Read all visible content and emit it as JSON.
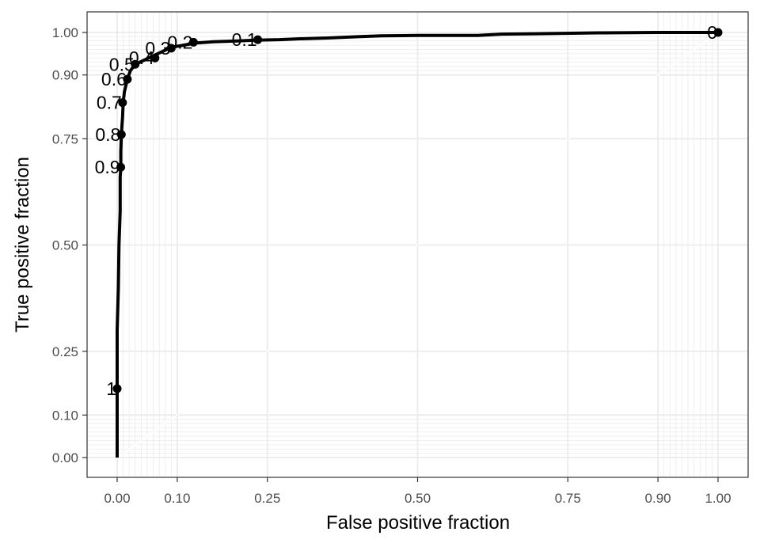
{
  "chart_data": {
    "type": "line",
    "title": "",
    "xlabel": "False positive fraction",
    "ylabel": "True positive fraction",
    "xlim": [
      0,
      1
    ],
    "ylim": [
      0,
      1
    ],
    "x_ticks": [
      0.0,
      0.1,
      0.25,
      0.5,
      0.75,
      0.9,
      1.0
    ],
    "x_tick_labels": [
      "0.00",
      "0.10",
      "0.25",
      "0.50",
      "0.75",
      "0.90",
      "1.00"
    ],
    "y_ticks": [
      0.0,
      0.1,
      0.25,
      0.5,
      0.75,
      0.9,
      1.0
    ],
    "y_tick_labels": [
      "0.00",
      "0.10",
      "0.25",
      "0.50",
      "0.75",
      "0.90",
      "1.00"
    ],
    "grid": true,
    "legend": "none",
    "series": [
      {
        "values": [
          [
            0.0,
            0.0
          ],
          [
            0.0,
            0.16
          ],
          [
            0.0,
            0.3
          ],
          [
            0.002,
            0.4
          ],
          [
            0.003,
            0.5
          ],
          [
            0.005,
            0.58
          ],
          [
            0.005,
            0.66
          ],
          [
            0.006,
            0.68
          ],
          [
            0.006,
            0.72
          ],
          [
            0.007,
            0.76
          ],
          [
            0.009,
            0.8
          ],
          [
            0.01,
            0.835
          ],
          [
            0.012,
            0.86
          ],
          [
            0.017,
            0.89
          ],
          [
            0.022,
            0.91
          ],
          [
            0.03,
            0.925
          ],
          [
            0.045,
            0.935
          ],
          [
            0.06,
            0.945
          ],
          [
            0.075,
            0.955
          ],
          [
            0.09,
            0.965
          ],
          [
            0.11,
            0.97
          ],
          [
            0.13,
            0.975
          ],
          [
            0.16,
            0.978
          ],
          [
            0.2,
            0.98
          ],
          [
            0.23,
            0.982
          ],
          [
            0.27,
            0.983
          ],
          [
            0.3,
            0.985
          ],
          [
            0.35,
            0.987
          ],
          [
            0.4,
            0.99
          ],
          [
            0.44,
            0.992
          ],
          [
            0.5,
            0.993
          ],
          [
            0.6,
            0.993
          ],
          [
            0.64,
            0.996
          ],
          [
            0.7,
            0.997
          ],
          [
            0.8,
            0.999
          ],
          [
            0.9,
            1.0
          ],
          [
            0.96,
            1.0
          ],
          [
            0.985,
            1.0
          ],
          [
            1.0,
            1.0
          ]
        ]
      }
    ],
    "cutoffs": [
      {
        "label": "1",
        "x": 0.0,
        "y": 0.162
      },
      {
        "label": "0.9",
        "x": 0.006,
        "y": 0.683
      },
      {
        "label": "0.8",
        "x": 0.007,
        "y": 0.76
      },
      {
        "label": "0.7",
        "x": 0.009,
        "y": 0.835
      },
      {
        "label": "0.6",
        "x": 0.017,
        "y": 0.89
      },
      {
        "label": "0.5",
        "x": 0.03,
        "y": 0.925
      },
      {
        "label": "0.4",
        "x": 0.063,
        "y": 0.94
      },
      {
        "label": "0.3",
        "x": 0.09,
        "y": 0.963
      },
      {
        "label": "0.2",
        "x": 0.127,
        "y": 0.977
      },
      {
        "label": "0.1",
        "x": 0.234,
        "y": 0.983
      },
      {
        "label": "0",
        "x": 1.0,
        "y": 1.0
      }
    ],
    "colors": {
      "line": "#000000",
      "grid": "#ebebeb",
      "panel_border": "#333333",
      "tick_text": "#4d4d4d",
      "diagonal": "#ffffff"
    }
  }
}
